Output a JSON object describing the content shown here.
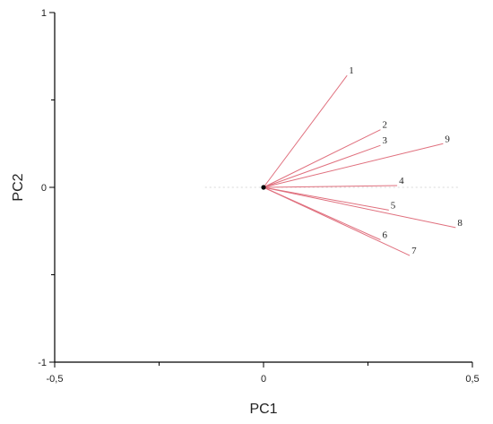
{
  "chart_data": {
    "type": "scatter",
    "subtype": "biplot-loading-vectors",
    "xlabel": "PC1",
    "ylabel": "PC2",
    "xlim": [
      -0.5,
      0.5
    ],
    "ylim": [
      -1,
      1
    ],
    "x_ticks": [
      -0.5,
      0,
      0.5
    ],
    "x_tick_labels": [
      "-0,5",
      "0",
      "0,5"
    ],
    "x_minor_ticks": [
      -0.25,
      0.25
    ],
    "y_ticks": [
      -1,
      0,
      1
    ],
    "y_tick_labels": [
      "-1",
      "0",
      "1"
    ],
    "y_minor_ticks": [
      -0.5,
      0.5
    ],
    "grid": false,
    "origin": [
      0,
      0
    ],
    "vectors": [
      {
        "label": "1",
        "x": 0.2,
        "y": 0.64
      },
      {
        "label": "2",
        "x": 0.28,
        "y": 0.33
      },
      {
        "label": "3",
        "x": 0.28,
        "y": 0.24
      },
      {
        "label": "9",
        "x": 0.43,
        "y": 0.25
      },
      {
        "label": "4",
        "x": 0.32,
        "y": 0.01
      },
      {
        "label": "5",
        "x": 0.3,
        "y": -0.13
      },
      {
        "label": "8",
        "x": 0.46,
        "y": -0.23
      },
      {
        "label": "6",
        "x": 0.28,
        "y": -0.3
      },
      {
        "label": "7",
        "x": 0.35,
        "y": -0.39
      }
    ],
    "colors": {
      "vector": "#e0707e",
      "axis": "#000000",
      "reference_line": "#d8d8d8",
      "label": "#222222",
      "origin": "#000000"
    }
  }
}
